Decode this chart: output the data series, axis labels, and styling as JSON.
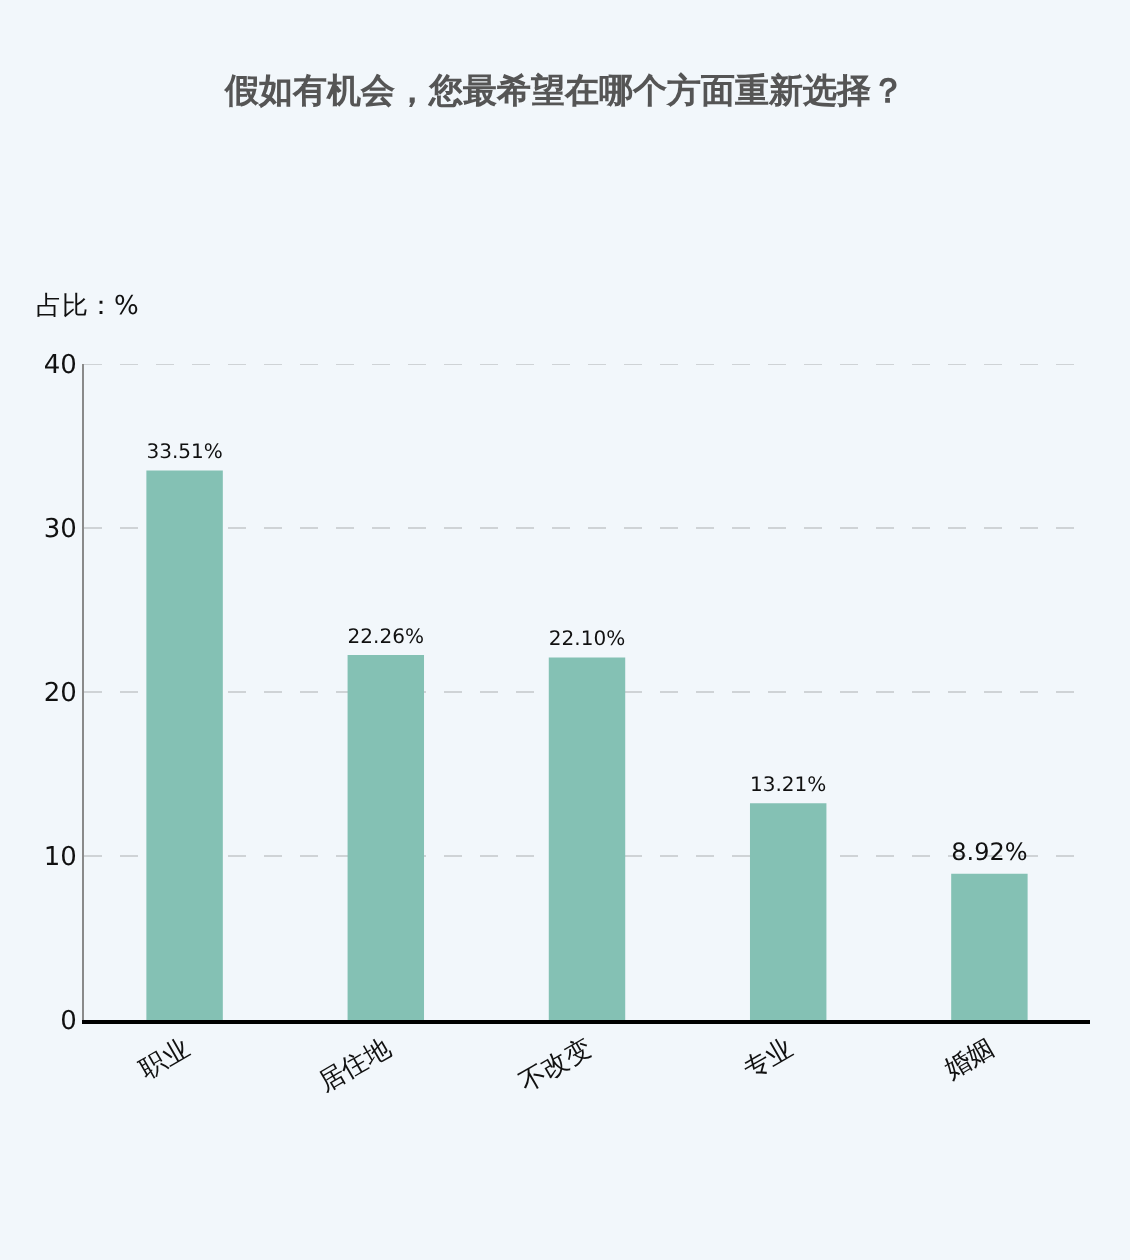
{
  "chart_data": {
    "type": "bar",
    "title": "假如有机会，您最希望在哪个方面重新选择？",
    "ylabel": "占比：%",
    "categories": [
      "职业",
      "居住地",
      "不改变",
      "专业",
      "婚姻"
    ],
    "values": [
      33.51,
      22.26,
      22.1,
      13.21,
      8.92
    ],
    "value_labels": [
      "33.51%",
      "22.26%",
      "22.10%",
      "13.21%",
      "8.92%"
    ],
    "color": "#84c1b4",
    "ylim": [
      0,
      40
    ],
    "yticks": [
      0,
      10,
      20,
      30,
      40
    ],
    "grid": "y"
  }
}
